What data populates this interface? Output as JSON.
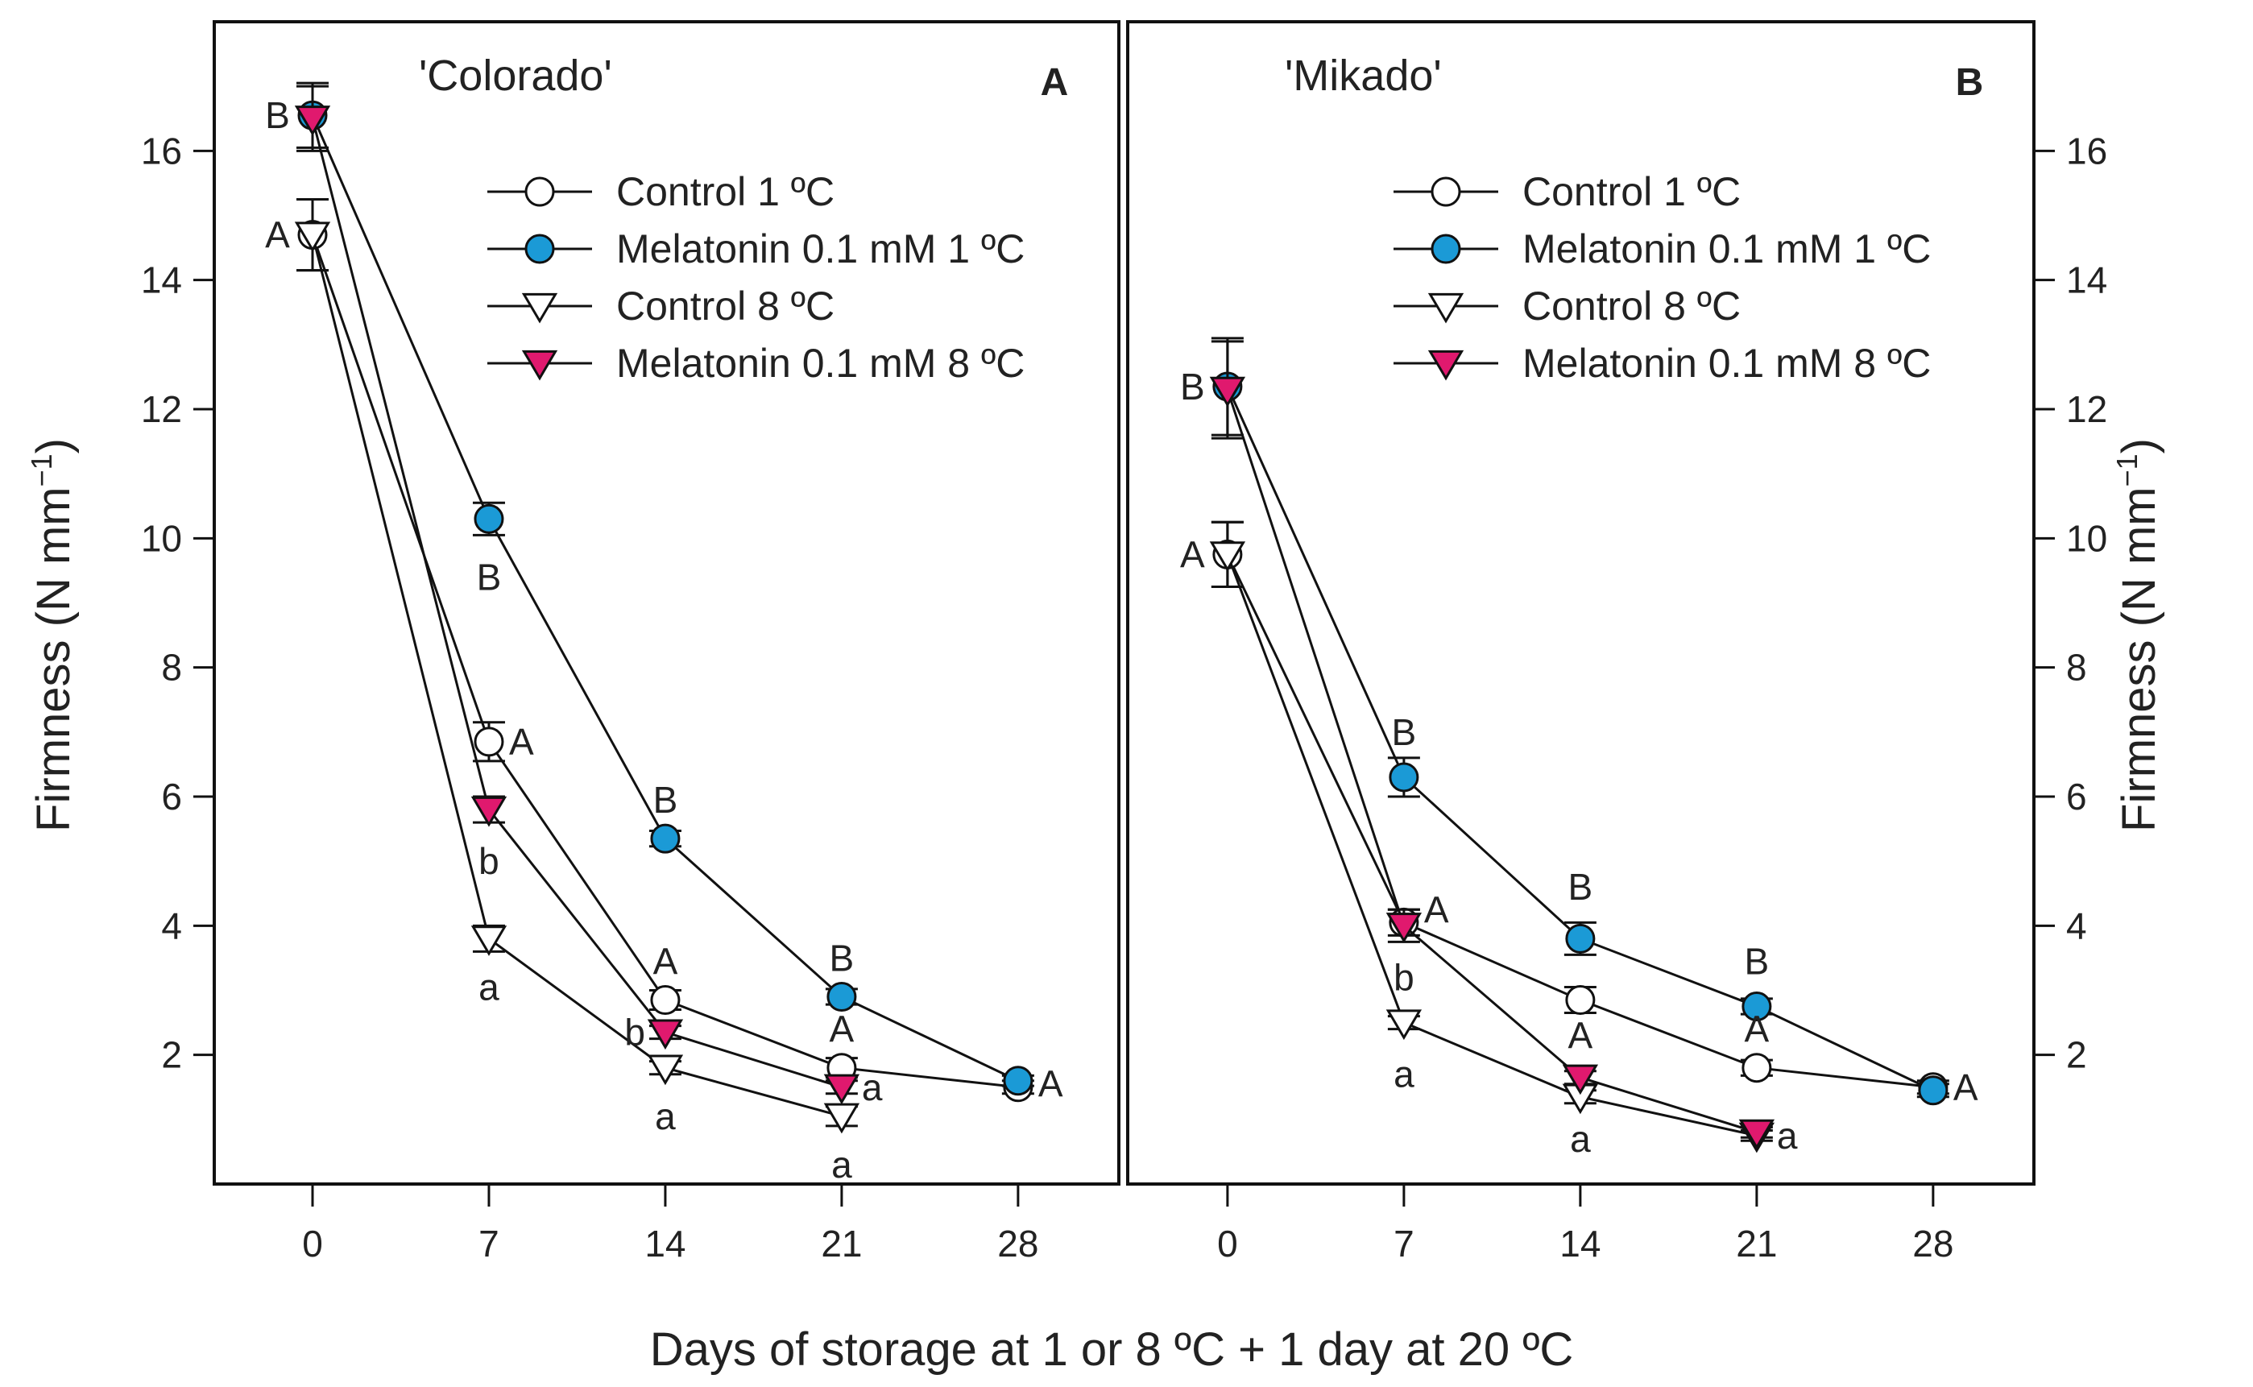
{
  "chart_data": [
    {
      "type": "line",
      "title": "'Colorado'",
      "panel_label": "A",
      "xlabel": "Days of storage at 1 or 8 ºC + 1 day at 20 ºC",
      "ylabel": "Firmness (N mm",
      "ylabel_sup": "−1",
      "ylabel_close": ")",
      "y_axis_side": "left",
      "xlim": [
        -3.9,
        32
      ],
      "ylim": [
        0,
        18
      ],
      "xticks": [
        0,
        7,
        14,
        21,
        28
      ],
      "yticks": [
        2,
        4,
        6,
        8,
        10,
        12,
        14,
        16
      ],
      "grid": false,
      "legend_position": "top-right",
      "series": [
        {
          "name": "Control 1 ºC",
          "marker": "circle",
          "fill": "#ffffff",
          "x": [
            0,
            7,
            14,
            21,
            28
          ],
          "y": [
            14.7,
            6.85,
            2.85,
            1.8,
            1.5
          ],
          "err": [
            0.55,
            0.3,
            0.15,
            0.15,
            0.1
          ]
        },
        {
          "name": "Melatonin 0.1 mM 1 ºC",
          "marker": "circle",
          "fill": "#1b9ad6",
          "x": [
            0,
            7,
            14,
            21,
            28
          ],
          "y": [
            16.55,
            10.3,
            5.35,
            2.9,
            1.6
          ],
          "err": [
            0.5,
            0.25,
            0.12,
            0.12,
            0.08
          ]
        },
        {
          "name": "Control 8 ºC",
          "marker": "triangle-down",
          "fill": "#ffffff",
          "x": [
            0,
            7,
            14,
            21
          ],
          "y": [
            14.7,
            3.8,
            1.8,
            1.05
          ],
          "err": [
            0.55,
            0.2,
            0.1,
            0.15
          ]
        },
        {
          "name": "Melatonin 0.1 mM 8 ºC",
          "marker": "triangle-down",
          "fill": "#e0196e",
          "x": [
            0,
            7,
            14,
            21
          ],
          "y": [
            16.5,
            5.8,
            2.35,
            1.5
          ],
          "err": [
            0.5,
            0.2,
            0.1,
            0.1
          ]
        }
      ],
      "annotations": [
        {
          "text": "B",
          "x": -0.9,
          "y": 16.55,
          "anchor": "end"
        },
        {
          "text": "A",
          "x": -0.9,
          "y": 14.7,
          "anchor": "end"
        },
        {
          "text": "B",
          "x": 7,
          "y": 9.4,
          "anchor": "middle"
        },
        {
          "text": "A",
          "x": 7.8,
          "y": 6.85,
          "anchor": "start"
        },
        {
          "text": "b",
          "x": 7,
          "y": 5.0,
          "anchor": "middle"
        },
        {
          "text": "a",
          "x": 7,
          "y": 3.05,
          "anchor": "middle"
        },
        {
          "text": "B",
          "x": 14,
          "y": 5.95,
          "anchor": "middle"
        },
        {
          "text": "A",
          "x": 14,
          "y": 3.45,
          "anchor": "middle"
        },
        {
          "text": "b",
          "x": 13.2,
          "y": 2.35,
          "anchor": "end"
        },
        {
          "text": "a",
          "x": 14,
          "y": 1.05,
          "anchor": "middle"
        },
        {
          "text": "B",
          "x": 21,
          "y": 3.5,
          "anchor": "middle"
        },
        {
          "text": "A",
          "x": 21,
          "y": 2.4,
          "anchor": "middle"
        },
        {
          "text": "a",
          "x": 21.8,
          "y": 1.5,
          "anchor": "start"
        },
        {
          "text": "a",
          "x": 21,
          "y": 0.3,
          "anchor": "middle"
        },
        {
          "text": "A",
          "x": 28.8,
          "y": 1.55,
          "anchor": "start"
        }
      ]
    },
    {
      "type": "line",
      "title": "'Mikado'",
      "panel_label": "B",
      "xlabel": "Days of storage at 1 or 8 ºC + 1 day at 20 ºC",
      "ylabel": "Firmness (N mm",
      "ylabel_sup": "−1",
      "ylabel_close": ")",
      "y_axis_side": "right",
      "xlim": [
        -3.96,
        32
      ],
      "ylim": [
        0,
        18
      ],
      "xticks": [
        0,
        7,
        14,
        21,
        28
      ],
      "yticks": [
        2,
        4,
        6,
        8,
        10,
        12,
        14,
        16
      ],
      "grid": false,
      "legend_position": "top-right",
      "series": [
        {
          "name": "Control 1 ºC",
          "marker": "circle",
          "fill": "#ffffff",
          "x": [
            0,
            7,
            14,
            21,
            28
          ],
          "y": [
            9.75,
            4.05,
            2.85,
            1.8,
            1.5
          ],
          "err": [
            0.5,
            0.2,
            0.2,
            0.12,
            0.1
          ]
        },
        {
          "name": "Melatonin 0.1 mM 1 ºC",
          "marker": "circle",
          "fill": "#1b9ad6",
          "x": [
            0,
            7,
            14,
            21,
            28
          ],
          "y": [
            12.35,
            6.3,
            3.8,
            2.75,
            1.45
          ],
          "err": [
            0.75,
            0.3,
            0.25,
            0.12,
            0.1
          ]
        },
        {
          "name": "Control 8 ºC",
          "marker": "triangle-down",
          "fill": "#ffffff",
          "x": [
            0,
            7,
            14,
            21
          ],
          "y": [
            9.75,
            2.5,
            1.35,
            0.75
          ],
          "err": [
            0.5,
            0.1,
            0.1,
            0.08
          ]
        },
        {
          "name": "Melatonin 0.1 mM 8 ºC",
          "marker": "triangle-down",
          "fill": "#e0196e",
          "x": [
            0,
            7,
            14,
            21
          ],
          "y": [
            12.3,
            4.0,
            1.65,
            0.8
          ],
          "err": [
            0.75,
            0.25,
            0.1,
            0.08
          ]
        }
      ],
      "annotations": [
        {
          "text": "B",
          "x": -0.9,
          "y": 12.35,
          "anchor": "end"
        },
        {
          "text": "A",
          "x": -0.9,
          "y": 9.75,
          "anchor": "end"
        },
        {
          "text": "B",
          "x": 7,
          "y": 7.0,
          "anchor": "middle"
        },
        {
          "text": "A",
          "x": 7.8,
          "y": 4.25,
          "anchor": "start"
        },
        {
          "text": "b",
          "x": 7,
          "y": 3.2,
          "anchor": "middle"
        },
        {
          "text": "a",
          "x": 7,
          "y": 1.7,
          "anchor": "middle"
        },
        {
          "text": "B",
          "x": 14,
          "y": 4.6,
          "anchor": "middle"
        },
        {
          "text": "A",
          "x": 14,
          "y": 2.3,
          "anchor": "middle"
        },
        {
          "text": "a",
          "x": 14,
          "y": 0.7,
          "anchor": "middle"
        },
        {
          "text": "B",
          "x": 21,
          "y": 3.45,
          "anchor": "middle"
        },
        {
          "text": "A",
          "x": 21,
          "y": 2.4,
          "anchor": "middle"
        },
        {
          "text": "a",
          "x": 21.8,
          "y": 0.75,
          "anchor": "start"
        },
        {
          "text": "A",
          "x": 28.8,
          "y": 1.5,
          "anchor": "start"
        }
      ]
    }
  ]
}
